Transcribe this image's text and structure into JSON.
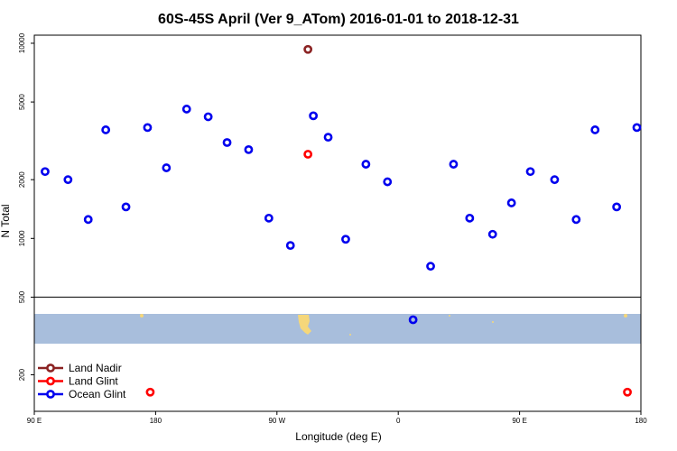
{
  "chart_data": {
    "type": "scatter",
    "title": "60S-45S April (Ver 9_ATom)   2016-01-01 to 2018-12-31",
    "xlabel": "Longitude (deg E)",
    "ylabel": "N Total",
    "y_scale": "log",
    "ylim": [
      130,
      11000
    ],
    "x_ticks": [
      {
        "value": 90,
        "label": "90 E"
      },
      {
        "value": 180,
        "label": "180"
      },
      {
        "value": 270,
        "label": "90 W"
      },
      {
        "value": 360,
        "label": "0"
      },
      {
        "value": 450,
        "label": "90 E"
      },
      {
        "value": 540,
        "label": "180"
      }
    ],
    "y_ticks": [
      {
        "value": 200,
        "label": "200"
      },
      {
        "value": 500,
        "label": "500"
      },
      {
        "value": 1000,
        "label": "1000"
      },
      {
        "value": 2000,
        "label": "2000"
      },
      {
        "value": 5000,
        "label": "5000"
      },
      {
        "value": 10000,
        "label": "10000"
      }
    ],
    "divider_value": 500,
    "map_band": {
      "y_top": 380,
      "y_bottom": 295
    },
    "legend_position": "bottom-left",
    "series": [
      {
        "name": "Land Nadir",
        "color": "#8b2323",
        "points": [
          [
            293,
            9300
          ]
        ]
      },
      {
        "name": "Land Glint",
        "color": "#ff0000",
        "points": [
          [
            293,
            2700
          ],
          [
            176,
            163
          ],
          [
            530,
            163
          ]
        ]
      },
      {
        "name": "Ocean Glint",
        "color": "#0000ee",
        "points": [
          [
            98,
            2200
          ],
          [
            115,
            2000
          ],
          [
            130,
            1250
          ],
          [
            143,
            3600
          ],
          [
            158,
            1450
          ],
          [
            174,
            3700
          ],
          [
            188,
            2300
          ],
          [
            203,
            4600
          ],
          [
            219,
            4200
          ],
          [
            233,
            3100
          ],
          [
            249,
            2850
          ],
          [
            264,
            1270
          ],
          [
            280,
            920
          ],
          [
            297,
            4250
          ],
          [
            308,
            3300
          ],
          [
            321,
            990
          ],
          [
            336,
            2400
          ],
          [
            352,
            1950
          ],
          [
            371,
            383
          ],
          [
            384,
            720
          ],
          [
            401,
            2400
          ],
          [
            413,
            1270
          ],
          [
            430,
            1050
          ],
          [
            444,
            1520
          ],
          [
            458,
            2200
          ],
          [
            476,
            2000
          ],
          [
            492,
            1250
          ],
          [
            506,
            3600
          ],
          [
            522,
            1450
          ],
          [
            537,
            3700
          ]
        ]
      }
    ]
  }
}
